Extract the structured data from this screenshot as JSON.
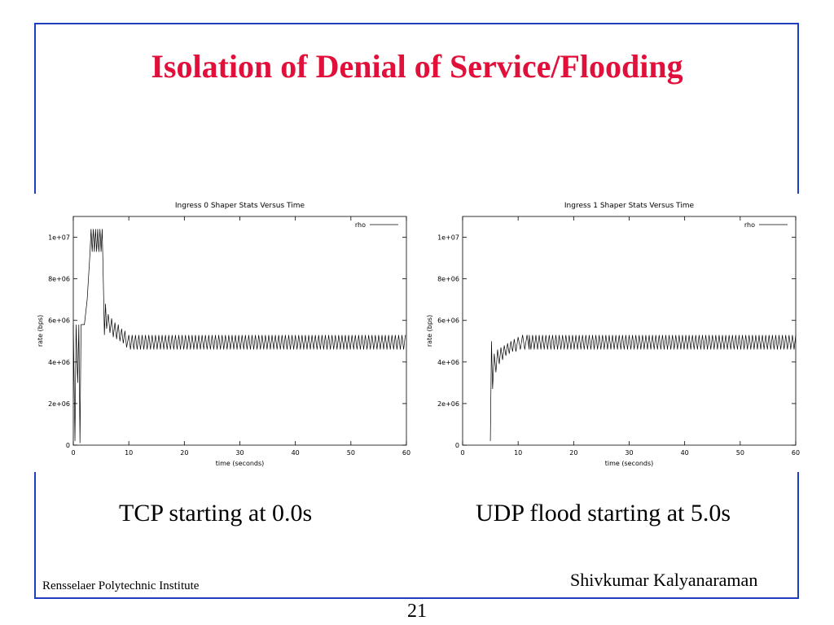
{
  "slide": {
    "title": "Isolation of Denial of Service/Flooding",
    "caption_left": "TCP starting at 0.0s",
    "caption_right": "UDP flood starting at 5.0s",
    "footer_left": "Rensselaer Polytechnic Institute",
    "footer_right": "Shivkumar Kalyanaraman",
    "page_number": "21",
    "colors": {
      "title": "#e0103a",
      "frame": "#1f3fbf"
    }
  },
  "chart_data": [
    {
      "type": "line",
      "title": "Ingress 0 Shaper Stats Versus Time",
      "xlabel": "time (seconds)",
      "ylabel": "rate (bps)",
      "xlim": [
        0,
        60
      ],
      "ylim": [
        0,
        11000000
      ],
      "x_ticks": [
        0,
        10,
        20,
        30,
        40,
        50,
        60
      ],
      "y_ticks": [
        0,
        2000000,
        4000000,
        6000000,
        8000000,
        10000000
      ],
      "y_tick_labels": [
        "0",
        "2e+06",
        "4e+06",
        "6e+06",
        "8e+06",
        "1e+07"
      ],
      "legend_position": "top-right",
      "series": [
        {
          "name": "rho",
          "oscillation": {
            "from": 10,
            "to": 60,
            "low": 4600000,
            "high": 5300000
          },
          "points": [
            [
              0.0,
              5800000
            ],
            [
              0.3,
              200000
            ],
            [
              0.5,
              5800000
            ],
            [
              0.8,
              3000000
            ],
            [
              1.0,
              5800000
            ],
            [
              1.2,
              100000
            ],
            [
              1.4,
              5800000
            ],
            [
              2.0,
              5800000
            ],
            [
              2.5,
              7000000
            ],
            [
              3.0,
              9200000
            ],
            [
              3.2,
              10400000
            ],
            [
              3.4,
              9300000
            ],
            [
              3.6,
              10400000
            ],
            [
              3.8,
              9300000
            ],
            [
              4.0,
              10400000
            ],
            [
              4.2,
              9300000
            ],
            [
              4.4,
              10400000
            ],
            [
              4.6,
              9300000
            ],
            [
              4.8,
              10400000
            ],
            [
              5.0,
              9300000
            ],
            [
              5.2,
              10400000
            ],
            [
              5.4,
              8000000
            ],
            [
              5.6,
              5300000
            ],
            [
              5.8,
              6800000
            ],
            [
              6.0,
              5600000
            ],
            [
              6.3,
              6300000
            ],
            [
              6.6,
              5400000
            ],
            [
              6.9,
              6100000
            ],
            [
              7.2,
              5200000
            ],
            [
              7.5,
              5900000
            ],
            [
              7.8,
              5100000
            ],
            [
              8.1,
              5800000
            ],
            [
              8.4,
              5000000
            ],
            [
              8.7,
              5600000
            ],
            [
              9.0,
              4900000
            ],
            [
              9.3,
              5500000
            ],
            [
              9.6,
              4700000
            ],
            [
              10.0,
              5300000
            ]
          ]
        }
      ]
    },
    {
      "type": "line",
      "title": "Ingress 1 Shaper Stats Versus Time",
      "xlabel": "time (seconds)",
      "ylabel": "rate (bps)",
      "xlim": [
        0,
        60
      ],
      "ylim": [
        0,
        11000000
      ],
      "x_ticks": [
        0,
        10,
        20,
        30,
        40,
        50,
        60
      ],
      "y_ticks": [
        0,
        2000000,
        4000000,
        6000000,
        8000000,
        10000000
      ],
      "y_tick_labels": [
        "0",
        "2e+06",
        "4e+06",
        "6e+06",
        "8e+06",
        "1e+07"
      ],
      "legend_position": "top-right",
      "series": [
        {
          "name": "rho",
          "oscillation": {
            "from": 12,
            "to": 60,
            "low": 4600000,
            "high": 5300000
          },
          "points": [
            [
              5.0,
              200000
            ],
            [
              5.2,
              5000000
            ],
            [
              5.4,
              2700000
            ],
            [
              5.7,
              4400000
            ],
            [
              6.0,
              3500000
            ],
            [
              6.3,
              4600000
            ],
            [
              6.6,
              3900000
            ],
            [
              6.9,
              4700000
            ],
            [
              7.2,
              4100000
            ],
            [
              7.5,
              4800000
            ],
            [
              7.8,
              4300000
            ],
            [
              8.1,
              4900000
            ],
            [
              8.4,
              4400000
            ],
            [
              8.7,
              5000000
            ],
            [
              9.0,
              4500000
            ],
            [
              9.3,
              5100000
            ],
            [
              9.6,
              4500000
            ],
            [
              10.0,
              5200000
            ],
            [
              10.4,
              4600000
            ],
            [
              10.8,
              5300000
            ],
            [
              11.2,
              4600000
            ],
            [
              11.6,
              5300000
            ],
            [
              12.0,
              4600000
            ]
          ]
        }
      ]
    }
  ]
}
